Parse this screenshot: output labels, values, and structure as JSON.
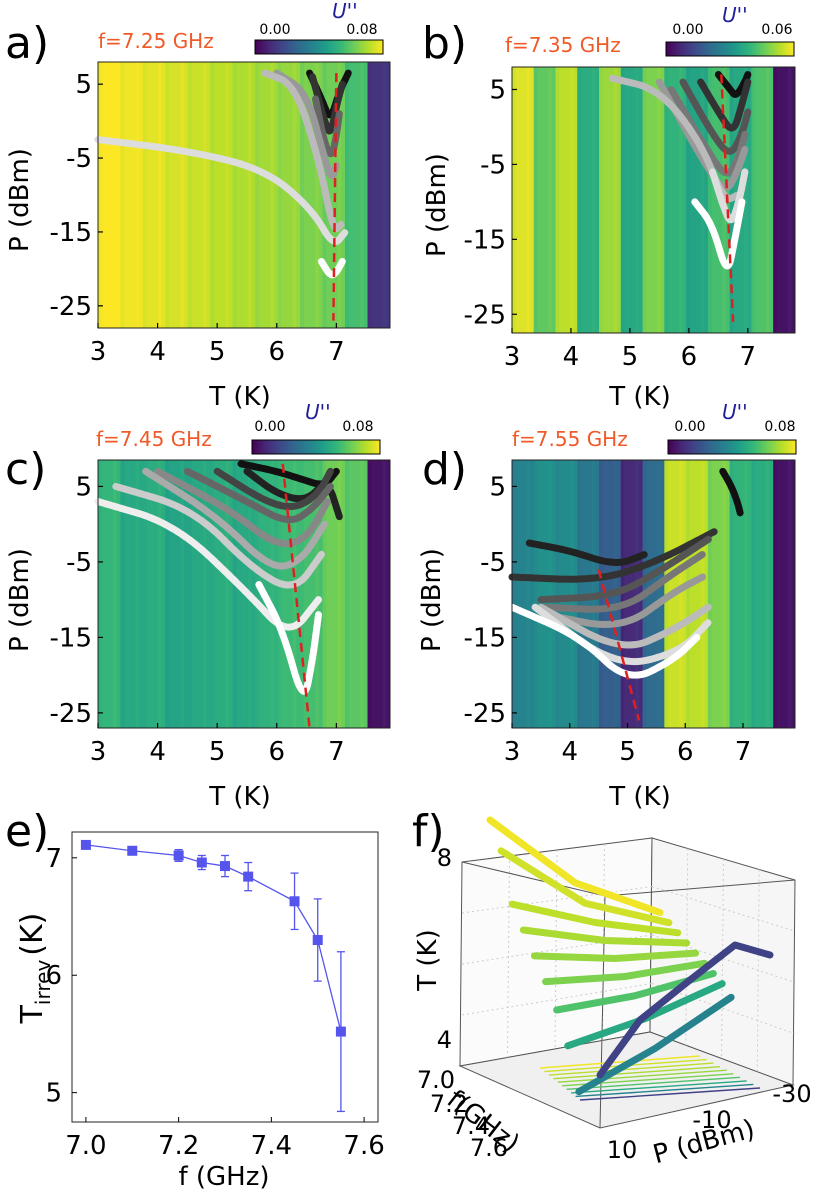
{
  "figure": {
    "panel_labels": [
      "a)",
      "b)",
      "c)",
      "d)",
      "e)",
      "f)"
    ]
  },
  "colors": {
    "freq_label": "#f05a28",
    "cbar_title": "#1f1f99",
    "critical_line": "#e02020",
    "marker_e": "#5555ee",
    "viridis": [
      "#440154",
      "#3b528b",
      "#21918c",
      "#5ec962",
      "#fde725"
    ]
  },
  "chart_data": [
    {
      "panel": "a)",
      "type": "heatmap",
      "freq_label": "f=7.25 GHz",
      "colorbar": {
        "title": "U''",
        "min_label": "0.00",
        "max_label": "0.08"
      },
      "xlabel": "T (K)",
      "ylabel": "P (dBm)",
      "xlim": [
        3,
        7.9
      ],
      "ylim": [
        -28,
        8
      ],
      "xticks": [
        "3",
        "4",
        "5",
        "6",
        "7"
      ],
      "xtick_values": [
        3,
        4,
        5,
        6,
        7
      ],
      "yticks": [
        "5",
        "-5",
        "-15",
        "-25"
      ],
      "ytick_values": [
        5,
        -5,
        -15,
        -25
      ],
      "background_levels": [
        1.0,
        0.98,
        0.96,
        0.94,
        0.92,
        0.9,
        0.88,
        0.86,
        0.84,
        0.8,
        0.78,
        0.7,
        0.15
      ],
      "critical_line": {
        "x": [
          7.0,
          6.95
        ],
        "y": [
          6.5,
          -27
        ]
      },
      "curves": [
        {
          "shade": "#111111",
          "T": [
            6.55,
            6.75,
            6.9,
            7.05,
            7.2
          ],
          "P": [
            6.5,
            3,
            0,
            4,
            6.5
          ]
        },
        {
          "shade": "#333333",
          "T": [
            6.6,
            6.8,
            6.9,
            7.0,
            7.1
          ],
          "P": [
            6,
            0,
            -2,
            2,
            5
          ]
        },
        {
          "shade": "#666666",
          "T": [
            6.65,
            6.8,
            6.92,
            7.0,
            7.05
          ],
          "P": [
            3,
            -3,
            -5,
            -2,
            1
          ]
        },
        {
          "shade": "#999999",
          "T": [
            6.0,
            6.5,
            6.8,
            6.92,
            7.0
          ],
          "P": [
            6.5,
            4,
            -5,
            -8,
            -6
          ]
        },
        {
          "shade": "#bbbbbb",
          "T": [
            5.8,
            6.3,
            6.7,
            6.95,
            7.08
          ],
          "P": [
            6.5,
            5,
            -5,
            -15,
            -14
          ]
        },
        {
          "shade": "#dddddd",
          "T": [
            3.0,
            4.5,
            5.8,
            6.6,
            6.95,
            7.15
          ],
          "P": [
            -2.5,
            -4,
            -6.5,
            -12,
            -17,
            -15
          ]
        },
        {
          "shade": "#ffffff",
          "T": [
            6.75,
            6.9,
            7.0,
            7.1
          ],
          "P": [
            -19,
            -21,
            -20.5,
            -19
          ]
        }
      ]
    },
    {
      "panel": "b)",
      "type": "heatmap",
      "freq_label": "f=7.35 GHz",
      "colorbar": {
        "title": "U''",
        "min_label": "0.00",
        "max_label": "0.06"
      },
      "xlabel": "T (K)",
      "ylabel": "P (dBm)",
      "xlim": [
        3,
        7.8
      ],
      "ylim": [
        -27.5,
        8
      ],
      "xticks": [
        "3",
        "4",
        "5",
        "6",
        "7"
      ],
      "xtick_values": [
        3,
        4,
        5,
        6,
        7
      ],
      "yticks": [
        "5",
        "-5",
        "-15",
        "-25"
      ],
      "ytick_values": [
        5,
        -5,
        -15,
        -25
      ],
      "background_levels": [
        0.95,
        0.75,
        0.9,
        0.62,
        0.85,
        0.6,
        0.8,
        0.65,
        0.58,
        0.7,
        0.6,
        0.72,
        0.05
      ],
      "critical_line": {
        "x": [
          6.55,
          6.75
        ],
        "y": [
          7,
          -26
        ]
      },
      "curves": [
        {
          "shade": "#111111",
          "T": [
            6.5,
            6.7,
            6.8,
            6.95,
            7.0
          ],
          "P": [
            7,
            5,
            4,
            6,
            7
          ]
        },
        {
          "shade": "#333333",
          "T": [
            6.2,
            6.5,
            6.75,
            6.9,
            7.0
          ],
          "P": [
            6,
            2,
            -1,
            3,
            6
          ]
        },
        {
          "shade": "#555555",
          "T": [
            5.9,
            6.4,
            6.7,
            6.9,
            7.0
          ],
          "P": [
            6,
            -1,
            -4,
            -1,
            2
          ]
        },
        {
          "shade": "#777777",
          "T": [
            5.7,
            6.3,
            6.65,
            6.85,
            6.95
          ],
          "P": [
            5,
            -3,
            -7,
            -4,
            -1
          ]
        },
        {
          "shade": "#999999",
          "T": [
            5.5,
            6.2,
            6.62,
            6.82,
            6.95
          ],
          "P": [
            6,
            -4,
            -9,
            -6,
            -3
          ]
        },
        {
          "shade": "#bbbbbb",
          "T": [
            4.7,
            5.5,
            6.2,
            6.6,
            6.85
          ],
          "P": [
            6.5,
            5,
            -2,
            -10,
            -9
          ]
        },
        {
          "shade": "#dddddd",
          "T": [
            6.4,
            6.6,
            6.72,
            6.85,
            6.95
          ],
          "P": [
            -6,
            -11,
            -13,
            -10,
            -6
          ]
        },
        {
          "shade": "#ffffff",
          "T": [
            6.1,
            6.4,
            6.65,
            6.78,
            6.9
          ],
          "P": [
            -10,
            -13,
            -20,
            -15,
            -10
          ]
        }
      ]
    },
    {
      "panel": "c)",
      "type": "heatmap",
      "freq_label": "f=7.45 GHz",
      "colorbar": {
        "title": "U''",
        "min_label": "0.00",
        "max_label": "0.08"
      },
      "xlabel": "T (K)",
      "ylabel": "P (dBm)",
      "xlim": [
        3,
        7.9
      ],
      "ylim": [
        -27,
        8.5
      ],
      "xticks": [
        "3",
        "4",
        "5",
        "6",
        "7"
      ],
      "xtick_values": [
        3,
        4,
        5,
        6,
        7
      ],
      "yticks": [
        "5",
        "-5",
        "-15",
        "-25"
      ],
      "ytick_values": [
        5,
        -5,
        -15,
        -25
      ],
      "background_levels": [
        0.66,
        0.6,
        0.62,
        0.58,
        0.6,
        0.62,
        0.6,
        0.64,
        0.68,
        0.7,
        0.78,
        0.74,
        0.05
      ],
      "critical_line": {
        "x": [
          6.1,
          6.55
        ],
        "y": [
          8,
          -27
        ]
      },
      "curves": [
        {
          "shade": "#111111",
          "T": [
            5.4,
            6.0,
            6.4,
            6.8,
            7.0
          ],
          "P": [
            8,
            7,
            6,
            5,
            7
          ]
        },
        {
          "shade": "#222222",
          "T": [
            5.5,
            6.0,
            6.5,
            6.85,
            7.05
          ],
          "P": [
            7,
            4,
            3,
            6,
            1
          ]
        },
        {
          "shade": "#444444",
          "T": [
            5.0,
            5.8,
            6.3,
            6.7,
            6.9
          ],
          "P": [
            7,
            3,
            2,
            4,
            7
          ]
        },
        {
          "shade": "#666666",
          "T": [
            4.5,
            5.5,
            6.2,
            6.6,
            6.9
          ],
          "P": [
            7,
            3,
            0,
            2,
            5
          ]
        },
        {
          "shade": "#888888",
          "T": [
            4.0,
            5.2,
            6.0,
            6.5,
            6.85
          ],
          "P": [
            7,
            2,
            -3,
            -2,
            3
          ]
        },
        {
          "shade": "#aaaaaa",
          "T": [
            3.8,
            5.0,
            5.9,
            6.4,
            6.8
          ],
          "P": [
            7,
            1,
            -6,
            -5,
            0
          ]
        },
        {
          "shade": "#cccccc",
          "T": [
            3.3,
            4.6,
            5.6,
            6.3,
            6.75
          ],
          "P": [
            5,
            2,
            -6,
            -9,
            -4
          ]
        },
        {
          "shade": "#eeeeee",
          "T": [
            3.0,
            4.3,
            5.5,
            6.2,
            6.7
          ],
          "P": [
            3,
            0,
            -9,
            -15,
            -10
          ]
        },
        {
          "shade": "#ffffff",
          "T": [
            5.7,
            6.1,
            6.45,
            6.6,
            6.7
          ],
          "P": [
            -8,
            -14,
            -24,
            -18,
            -12
          ]
        }
      ]
    },
    {
      "panel": "d)",
      "type": "heatmap",
      "freq_label": "f=7.55 GHz",
      "colorbar": {
        "title": "U''",
        "min_label": "0.00",
        "max_label": "0.08"
      },
      "xlabel": "T (K)",
      "ylabel": "P (dBm)",
      "xlim": [
        3,
        7.9
      ],
      "ylim": [
        -27,
        8.5
      ],
      "xticks": [
        "3",
        "4",
        "5",
        "6",
        "7"
      ],
      "xtick_values": [
        3,
        4,
        5,
        6,
        7
      ],
      "yticks": [
        "5",
        "-5",
        "-15",
        "-25"
      ],
      "ytick_values": [
        5,
        -5,
        -15,
        -25
      ],
      "background_levels": [
        0.45,
        0.5,
        0.48,
        0.4,
        0.3,
        0.12,
        0.35,
        0.92,
        0.9,
        0.8,
        0.65,
        0.62,
        0.05
      ],
      "critical_line": {
        "x": [
          4.5,
          5.2
        ],
        "y": [
          -6,
          -26
        ]
      },
      "curves": [
        {
          "shade": "#111111",
          "T": [
            6.65,
            6.8,
            6.9,
            6.95
          ],
          "P": [
            7,
            5,
            3,
            1.5
          ]
        },
        {
          "shade": "#222222",
          "T": [
            3.3,
            4.0,
            4.8,
            5.3
          ],
          "P": [
            -2.5,
            -3.5,
            -5.5,
            -4
          ]
        },
        {
          "shade": "#333333",
          "T": [
            3.0,
            4.5,
            5.5,
            6.5
          ],
          "P": [
            -7,
            -7.5,
            -5,
            -1
          ]
        },
        {
          "shade": "#555555",
          "T": [
            3.5,
            4.8,
            5.6,
            6.4
          ],
          "P": [
            -10,
            -9.5,
            -6,
            -2
          ]
        },
        {
          "shade": "#777777",
          "T": [
            3.6,
            4.9,
            5.7,
            6.3
          ],
          "P": [
            -11,
            -11.5,
            -7,
            -4
          ]
        },
        {
          "shade": "#999999",
          "T": [
            3.6,
            4.9,
            5.8,
            6.3
          ],
          "P": [
            -12,
            -14,
            -9,
            -7
          ]
        },
        {
          "shade": "#bbbbbb",
          "T": [
            3.5,
            4.9,
            5.8,
            6.4
          ],
          "P": [
            -11,
            -17,
            -14,
            -11
          ]
        },
        {
          "shade": "#dddddd",
          "T": [
            3.4,
            4.8,
            5.9,
            6.4
          ],
          "P": [
            -11,
            -19,
            -17,
            -13
          ]
        },
        {
          "shade": "#ffffff",
          "T": [
            3.0,
            4.2,
            5.0,
            5.8,
            6.2
          ],
          "P": [
            -11,
            -15,
            -21,
            -18,
            -15
          ]
        }
      ]
    },
    {
      "panel": "e)",
      "type": "line",
      "xlabel": "f (GHz)",
      "ylabel_main": "T",
      "ylabel_sub": "irrev",
      "ylabel_unit": "(K)",
      "xlim": [
        6.97,
        7.63
      ],
      "ylim": [
        4.75,
        7.22
      ],
      "xticks": [
        "7.0",
        "7.2",
        "7.4",
        "7.6"
      ],
      "xtick_values": [
        7.0,
        7.2,
        7.4,
        7.6
      ],
      "yticks": [
        "5",
        "6",
        "7"
      ],
      "ytick_values": [
        5,
        6,
        7
      ],
      "x": [
        7.0,
        7.1,
        7.2,
        7.25,
        7.3,
        7.35,
        7.45,
        7.5,
        7.55
      ],
      "y": [
        7.11,
        7.06,
        7.02,
        6.96,
        6.93,
        6.84,
        6.63,
        6.3,
        5.52
      ],
      "yerr": [
        0.03,
        0.03,
        0.05,
        0.06,
        0.09,
        0.12,
        0.24,
        0.35,
        0.68
      ]
    },
    {
      "panel": "f)",
      "type": "scatter",
      "projection": "3d",
      "zlabel": "T (K)",
      "xlabel": "f(GHz)",
      "ylabel": "P (dBm)",
      "zticks": [
        "8",
        "4"
      ],
      "xticks": [
        "7.0",
        "7.2",
        "7.4",
        "7.6"
      ],
      "yticks": [
        "10",
        "-10",
        "-30"
      ],
      "series": [
        {
          "color_level": 0.98,
          "T": [
            7.4,
            7.5
          ]
        },
        {
          "color_level": 0.93,
          "T": [
            7.1,
            7.4
          ]
        },
        {
          "color_level": 0.9,
          "T": [
            6.9,
            7.3
          ]
        },
        {
          "color_level": 0.87,
          "T": [
            6.8,
            7.2
          ]
        },
        {
          "color_level": 0.84,
          "T": [
            6.7,
            7.1
          ]
        },
        {
          "color_level": 0.8,
          "T": [
            6.6,
            7.0
          ]
        },
        {
          "color_level": 0.72,
          "T": [
            6.4,
            6.9
          ]
        },
        {
          "color_level": 0.6,
          "T": [
            5.9,
            6.8
          ]
        },
        {
          "color_level": 0.45,
          "T": [
            5.0,
            6.6
          ]
        },
        {
          "color_level": 0.2,
          "T": [
            3.2,
            4.5
          ]
        }
      ]
    }
  ]
}
